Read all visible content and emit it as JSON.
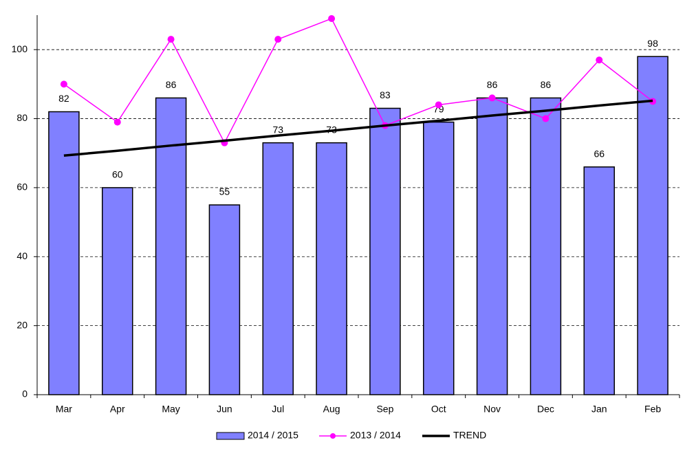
{
  "chart_data": {
    "type": "bar",
    "categories": [
      "Mar",
      "Apr",
      "May",
      "Jun",
      "Jul",
      "Aug",
      "Sep",
      "Oct",
      "Nov",
      "Dec",
      "Jan",
      "Feb"
    ],
    "series": [
      {
        "name": "2014 / 2015",
        "type": "bar",
        "color": "#8080ff",
        "values": [
          82,
          60,
          86,
          55,
          73,
          73,
          83,
          79,
          86,
          86,
          66,
          98
        ]
      },
      {
        "name": "2013 / 2014",
        "type": "line",
        "color": "#ff00ff",
        "values": [
          90,
          79,
          103,
          73,
          103,
          109,
          78,
          84,
          86,
          80,
          97,
          85
        ]
      },
      {
        "name": "TREND",
        "type": "line",
        "color": "#000000",
        "values": [
          69.3,
          70.7,
          72.2,
          73.6,
          75.1,
          76.5,
          78.0,
          79.4,
          80.9,
          82.3,
          83.8,
          85.2
        ]
      }
    ],
    "ylim": [
      0,
      110
    ],
    "yticks": [
      0,
      20,
      40,
      60,
      80,
      100
    ],
    "grid": true,
    "legend": "bottom"
  }
}
